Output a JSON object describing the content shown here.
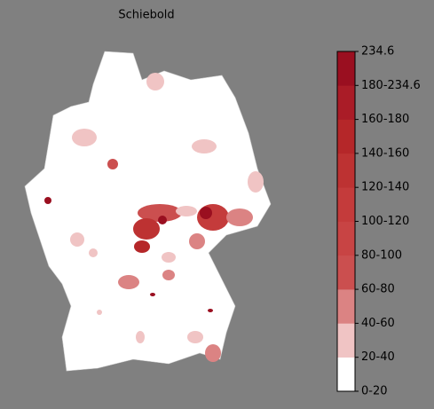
{
  "title": "Schiebold",
  "colorbar": {
    "labels": [
      "0-20",
      "20-40",
      "40-60",
      "60-80",
      "80-100",
      "100-120",
      "120-140",
      "140-160",
      "160-180",
      "180-234.6",
      "234.6"
    ],
    "colors": [
      "#ffffff",
      "#f0c4c4",
      "#db8383",
      "#cb4f4f",
      "#c84444",
      "#c43b3b",
      "#bd3232",
      "#b52729",
      "#aa1c27",
      "#9a0f20"
    ]
  }
}
